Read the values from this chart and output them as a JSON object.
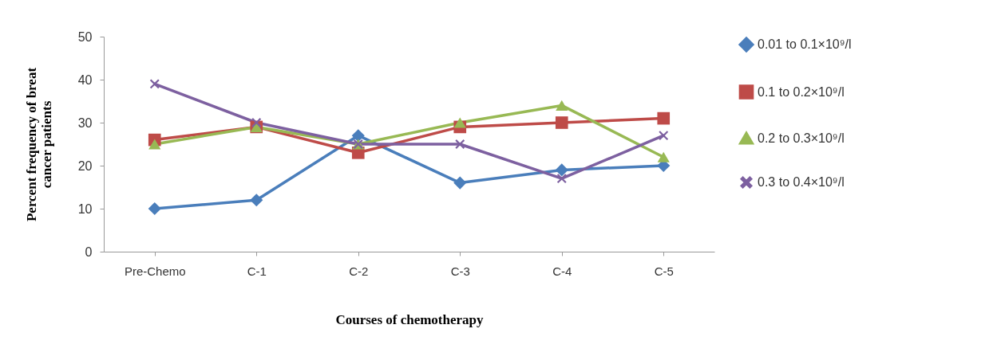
{
  "chart_data": {
    "type": "line",
    "categories": [
      "Pre-Chemo",
      "C-1",
      "C-2",
      "C-3",
      "C-4",
      "C-5"
    ],
    "xlabel": "Courses of chemotherapy",
    "ylabel": "Percent frequency of breat\ncancer patients",
    "ylim": [
      0,
      50
    ],
    "yticks": [
      0,
      10,
      20,
      30,
      40,
      50
    ],
    "grid": false,
    "legend": "right",
    "series": [
      {
        "name": "0.01 to 0.1×10⁹/l",
        "color": "#4a7ebb",
        "marker": "diamond",
        "values": [
          10,
          12,
          27,
          16,
          19,
          20
        ]
      },
      {
        "name": "0.1 to 0.2×10⁹/l",
        "color": "#be4b48",
        "marker": "square",
        "values": [
          26,
          29,
          23,
          29,
          30,
          31
        ]
      },
      {
        "name": "0.2 to 0.3×10⁹/l",
        "color": "#98b954",
        "marker": "triangle",
        "values": [
          25,
          29,
          25,
          30,
          34,
          22
        ]
      },
      {
        "name": "0.3 to 0.4×10⁹/l",
        "color": "#7d60a0",
        "marker": "cross",
        "values": [
          39,
          30,
          25,
          25,
          17,
          27
        ]
      }
    ]
  }
}
